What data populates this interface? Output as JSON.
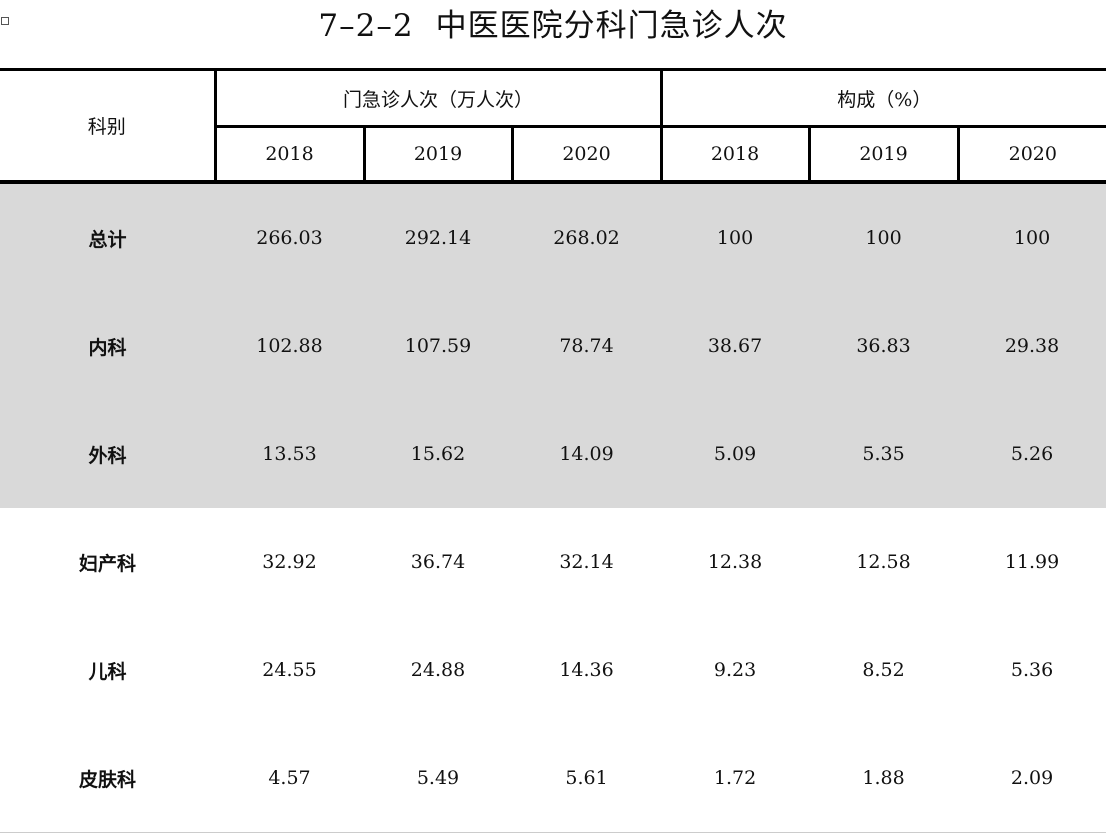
{
  "title_num": "7–2–2",
  "title_text": "中医医院分科门急诊人次",
  "table": {
    "corner_header": "科别",
    "group_headers": [
      "门急诊人次（万人次）",
      "构成（%）"
    ],
    "years": [
      "2018",
      "2019",
      "2020",
      "2018",
      "2019",
      "2020"
    ],
    "rows": [
      {
        "label": "总计",
        "values": [
          "266.03",
          "292.14",
          "268.02",
          "100",
          "100",
          "100"
        ]
      },
      {
        "label": "内科",
        "values": [
          "102.88",
          "107.59",
          "78.74",
          "38.67",
          "36.83",
          "29.38"
        ]
      },
      {
        "label": "外科",
        "values": [
          "13.53",
          "15.62",
          "14.09",
          "5.09",
          "5.35",
          "5.26"
        ]
      },
      {
        "label": "妇产科",
        "values": [
          "32.92",
          "36.74",
          "32.14",
          "12.38",
          "12.58",
          "11.99"
        ]
      },
      {
        "label": "儿科",
        "values": [
          "24.55",
          "24.88",
          "14.36",
          "9.23",
          "8.52",
          "5.36"
        ]
      },
      {
        "label": "皮肤科",
        "values": [
          "4.57",
          "5.49",
          "5.61",
          "1.72",
          "1.88",
          "2.09"
        ]
      }
    ]
  },
  "shaded_row_color": "#d9d9d9"
}
